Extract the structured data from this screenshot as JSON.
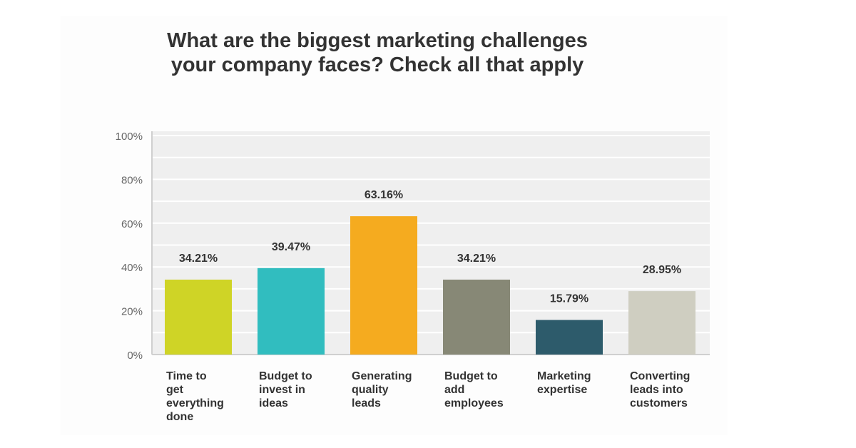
{
  "chart_data": {
    "type": "bar",
    "title": "What are the biggest marketing challenges your company faces? Check all that apply",
    "title_lines": [
      "What are the biggest marketing challenges",
      "your company faces? Check all that apply"
    ],
    "categories": [
      "Time to get everything done",
      "Budget to invest in ideas",
      "Generating quality leads",
      "Budget to add employees",
      "Marketing expertise",
      "Converting leads into customers"
    ],
    "category_lines": [
      [
        "Time to",
        "get",
        "everything",
        "done"
      ],
      [
        "Budget to",
        "invest in",
        "ideas"
      ],
      [
        "Generating",
        "quality",
        "leads"
      ],
      [
        "Budget to",
        "add",
        "employees"
      ],
      [
        "Marketing",
        "expertise"
      ],
      [
        "Converting",
        "leads into",
        "customers"
      ]
    ],
    "values": [
      34.21,
      39.47,
      63.16,
      34.21,
      15.79,
      28.95
    ],
    "data_labels": [
      "34.21%",
      "39.47%",
      "63.16%",
      "34.21%",
      "15.79%",
      "28.95%"
    ],
    "colors": [
      "#cfd426",
      "#31bdbf",
      "#f5ab1f",
      "#878876",
      "#2d5b6b",
      "#cfcec1"
    ],
    "ylim": [
      0,
      100
    ],
    "yticks": [
      "0%",
      "20%",
      "40%",
      "60%",
      "80%",
      "100%"
    ],
    "grid": true,
    "xlabel": "",
    "ylabel": ""
  }
}
